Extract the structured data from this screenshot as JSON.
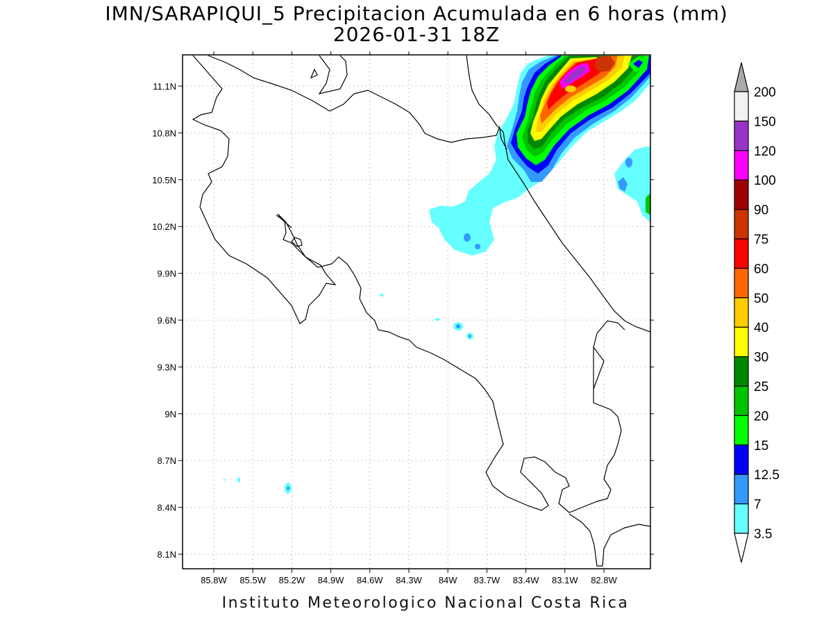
{
  "header": {
    "title": "IMN/SARAPIQUI_5 Precipitacion Acumulada en 6 horas (mm)",
    "subtitle": "2026-01-31 18Z"
  },
  "footer": {
    "credit": "Instituto Meteorologico Nacional Costa Rica"
  },
  "map": {
    "lon_labels": [
      "85.8W",
      "85.5W",
      "85.2W",
      "84.9W",
      "84.6W",
      "84.3W",
      "84W",
      "83.7W",
      "83.4W",
      "83.1W",
      "82.8W"
    ],
    "lat_labels": [
      "11.1N",
      "10.8N",
      "10.5N",
      "10.2N",
      "9.9N",
      "9.6N",
      "9.3N",
      "9N",
      "8.7N",
      "8.4N",
      "8.1N"
    ],
    "lon_range": [
      "85.97W",
      "82.52W"
    ],
    "lat_range": [
      "8.03N",
      "11.29N"
    ],
    "grid": "dotted"
  },
  "colorbar": {
    "labels": [
      "200",
      "150",
      "120",
      "100",
      "90",
      "75",
      "60",
      "50",
      "40",
      "30",
      "25",
      "20",
      "15",
      "12.5",
      "7",
      "3.5"
    ],
    "colors": [
      "#f2f2f2",
      "#9b33c9",
      "#ff00ff",
      "#a00000",
      "#cc3300",
      "#ff0000",
      "#ff6600",
      "#ffcc00",
      "#ffff00",
      "#008800",
      "#00c400",
      "#00ff00",
      "#0000ff",
      "#3399ff",
      "#66ffff"
    ],
    "over_color": "#aaaaaa",
    "under_color": "#ffffff"
  }
}
